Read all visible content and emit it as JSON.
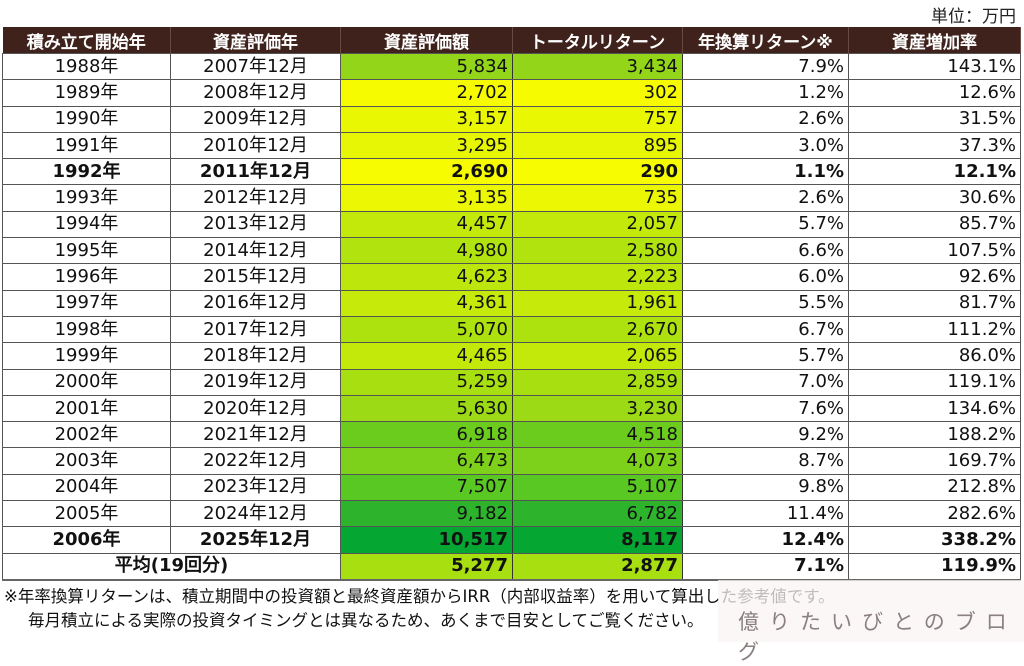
{
  "unit_label": "単位：万円",
  "table": {
    "headers": [
      "積み立て開始年",
      "資産評価年",
      "資産評価額",
      "トータルリターン",
      "年換算リターン※",
      "資産増加率"
    ],
    "rows": [
      {
        "start": "1988年",
        "eval": "2007年12月",
        "value": "5,834",
        "total": "3,434",
        "annual": "7.9%",
        "growth": "143.1%",
        "color": "#93d619",
        "bold": false
      },
      {
        "start": "1989年",
        "eval": "2008年12月",
        "value": "2,702",
        "total": "302",
        "annual": "1.2%",
        "growth": "12.6%",
        "color": "#f7fb00",
        "bold": false
      },
      {
        "start": "1990年",
        "eval": "2009年12月",
        "value": "3,157",
        "total": "757",
        "annual": "2.6%",
        "growth": "31.5%",
        "color": "#eaf703",
        "bold": false
      },
      {
        "start": "1991年",
        "eval": "2010年12月",
        "value": "3,295",
        "total": "895",
        "annual": "3.0%",
        "growth": "37.3%",
        "color": "#e6f604",
        "bold": false
      },
      {
        "start": "1992年",
        "eval": "2011年12月",
        "value": "2,690",
        "total": "290",
        "annual": "1.1%",
        "growth": "12.1%",
        "color": "#f8fc00",
        "bold": true
      },
      {
        "start": "1993年",
        "eval": "2012年12月",
        "value": "3,135",
        "total": "735",
        "annual": "2.6%",
        "growth": "30.6%",
        "color": "#ebf703",
        "bold": false
      },
      {
        "start": "1994年",
        "eval": "2013年12月",
        "value": "4,457",
        "total": "2,057",
        "annual": "5.7%",
        "growth": "85.7%",
        "color": "#c3e90b",
        "bold": false
      },
      {
        "start": "1995年",
        "eval": "2014年12月",
        "value": "4,980",
        "total": "2,580",
        "annual": "6.6%",
        "growth": "107.5%",
        "color": "#b1e30f",
        "bold": false
      },
      {
        "start": "1996年",
        "eval": "2015年12月",
        "value": "4,623",
        "total": "2,223",
        "annual": "6.0%",
        "growth": "92.6%",
        "color": "#bde70c",
        "bold": false
      },
      {
        "start": "1997年",
        "eval": "2016年12月",
        "value": "4,361",
        "total": "1,961",
        "annual": "5.5%",
        "growth": "81.7%",
        "color": "#c6ea0a",
        "bold": false
      },
      {
        "start": "1998年",
        "eval": "2017年12月",
        "value": "5,070",
        "total": "2,670",
        "annual": "6.7%",
        "growth": "111.2%",
        "color": "#aee20f",
        "bold": false
      },
      {
        "start": "1999年",
        "eval": "2018年12月",
        "value": "4,465",
        "total": "2,065",
        "annual": "5.7%",
        "growth": "86.0%",
        "color": "#c3e90b",
        "bold": false
      },
      {
        "start": "2000年",
        "eval": "2019年12月",
        "value": "5,259",
        "total": "2,859",
        "annual": "7.0%",
        "growth": "119.1%",
        "color": "#a7df11",
        "bold": false
      },
      {
        "start": "2001年",
        "eval": "2020年12月",
        "value": "5,630",
        "total": "3,230",
        "annual": "7.6%",
        "growth": "134.6%",
        "color": "#9bda15",
        "bold": false
      },
      {
        "start": "2002年",
        "eval": "2021年12月",
        "value": "6,918",
        "total": "4,518",
        "annual": "9.2%",
        "growth": "188.2%",
        "color": "#6ccc1e",
        "bold": false
      },
      {
        "start": "2003年",
        "eval": "2022年12月",
        "value": "6,473",
        "total": "4,073",
        "annual": "8.7%",
        "growth": "169.7%",
        "color": "#7dd11b",
        "bold": false
      },
      {
        "start": "2004年",
        "eval": "2023年12月",
        "value": "7,507",
        "total": "5,107",
        "annual": "9.8%",
        "growth": "212.8%",
        "color": "#5ac822",
        "bold": false
      },
      {
        "start": "2005年",
        "eval": "2024年12月",
        "value": "9,182",
        "total": "6,782",
        "annual": "11.4%",
        "growth": "282.6%",
        "color": "#2db42c",
        "bold": false
      },
      {
        "start": "2006年",
        "eval": "2025年12月",
        "value": "10,517",
        "total": "8,117",
        "annual": "12.4%",
        "growth": "338.2%",
        "color": "#05a632",
        "bold": true
      }
    ],
    "average": {
      "label": "平均(19回分)",
      "value": "5,277",
      "total": "2,877",
      "annual": "7.1%",
      "growth": "119.9%",
      "color": "#a8df11"
    }
  },
  "notes": {
    "line1": "※年率換算リターンは、積立期間中の投資額と最終資産額からIRR（内部収益率）を用いて算出した参考値です。",
    "line2": "毎月積立による実際の投資タイミングとは異なるため、あくまで目安としてご覧ください。"
  },
  "watermark": "億りたいびとのブログ",
  "colors": {
    "header_bg": "#3f221b",
    "header_text": "#ffffff"
  }
}
